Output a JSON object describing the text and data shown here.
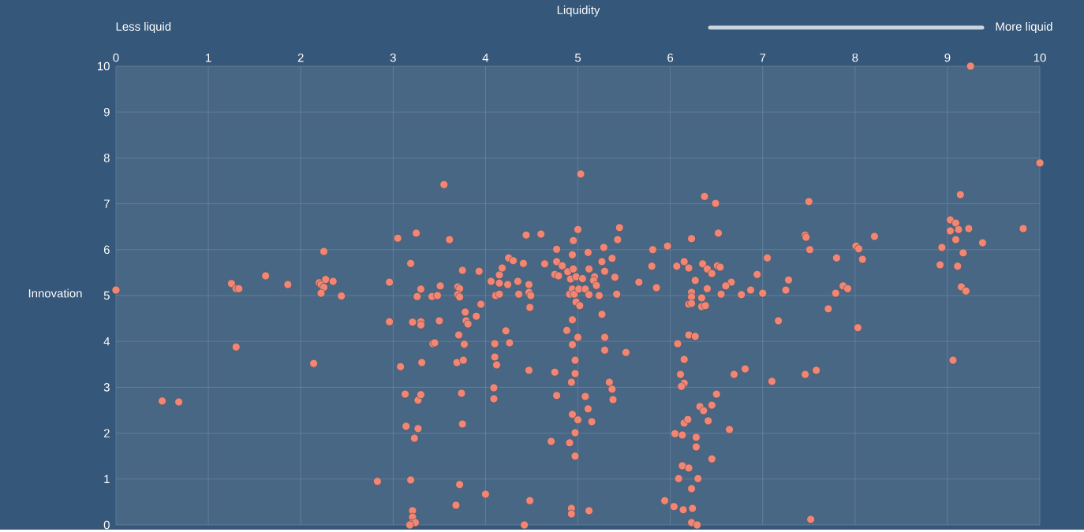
{
  "chart_data": {
    "type": "scatter",
    "xlabel": "Liquidity",
    "ylabel": "Innovation",
    "annotations": [
      "Less liquid",
      "More liquid"
    ],
    "x": [
      0,
      0.5,
      0.68,
      1.25,
      1.3,
      1.33,
      1.3,
      1.62,
      1.86,
      2.14,
      2.2,
      2.22,
      2.25,
      2.27,
      2.22,
      2.25,
      2.35,
      2.44,
      2.83,
      3.05,
      3.25,
      3.55,
      3.61,
      3.19,
      3.75,
      3.93,
      2.96,
      3.3,
      3.51,
      3.7,
      3.72,
      4.06,
      4.15,
      4.18,
      4.15,
      4.24,
      4.25,
      4.3,
      4.35,
      4.41,
      4.44,
      4.47,
      4.6,
      4.64,
      4.77,
      4.77,
      4.83,
      4.75,
      4.79,
      4.89,
      4.92,
      4.94,
      4.95,
      5.0,
      4.95,
      4.98,
      5.05,
      5.11,
      5.12,
      5.03,
      5.28,
      5.26,
      5.37,
      5.43,
      5.45,
      5.18,
      5.17,
      5.2,
      5.29,
      5.4,
      5.66,
      5.8,
      5.81,
      5.97,
      5.85,
      6.07,
      6.15,
      6.2,
      6.23,
      6.37,
      6.49,
      6.52,
      6.27,
      6.35,
      6.4,
      6.45,
      6.51,
      6.54,
      6.4,
      3.26,
      3.42,
      3.48,
      3.7,
      3.72,
      4.11,
      4.15,
      4.36,
      4.47,
      4.49,
      4.48,
      3.95,
      3.78,
      3.79,
      3.81,
      3.9,
      2.96,
      3.21,
      3.3,
      3.3,
      3.5,
      3.71,
      3.43,
      3.45,
      3.77,
      4.1,
      4.26,
      4.22,
      3.08,
      3.31,
      3.69,
      3.76,
      4.1,
      4.12,
      4.47,
      3.13,
      3.27,
      3.3,
      3.74,
      4.09,
      4.09,
      4.75,
      4.77,
      3.14,
      3.27,
      3.23,
      3.75,
      4.71,
      4.91,
      4.97,
      4.97,
      4.94,
      5.0,
      5.15,
      5.11,
      5.08,
      4.93,
      4.97,
      4.97,
      5.0,
      4.94,
      4.88,
      4.94,
      4.98,
      5.02,
      4.91,
      4.94,
      4.96,
      5.01,
      5.08,
      5.12,
      5.23,
      5.42,
      5.26,
      5.29,
      5.29,
      5.52,
      5.34,
      5.37,
      5.38,
      6.23,
      6.23,
      6.2,
      6.23,
      6.34,
      6.34,
      6.38,
      6.55,
      6.08,
      6.2,
      6.27,
      6.15,
      6.11,
      6.15,
      6.12,
      6.05,
      6.13,
      6.28,
      6.28,
      6.15,
      6.19,
      6.32,
      6.36,
      6.45,
      6.41,
      6.5,
      6.45,
      6.13,
      6.2,
      6.09,
      6.3,
      6.23,
      5.94,
      6.04,
      6.14,
      6.24,
      6.23,
      6.29,
      5.12,
      4.93,
      4.93,
      4.48,
      4.42,
      4.0,
      3.68,
      3.72,
      3.19,
      3.21,
      3.21,
      3.2,
      3.24,
      3.18,
      9.25,
      10,
      7.5,
      7.46,
      7.47,
      7.51,
      7.05,
      7.8,
      8.01,
      8.04,
      8.21,
      8.08,
      6.94,
      7.28,
      6.66,
      6.6,
      6.87,
      7.25,
      9.14,
      9.03,
      9.09,
      9.03,
      9.12,
      9.23,
      9.82,
      9.09,
      9.38,
      8.94,
      9.17,
      8.92,
      9.11,
      9.15,
      9.2,
      7.87,
      7.92,
      7.79,
      6.77,
      7.0,
      7.17,
      7.71,
      8.03,
      9.06,
      6.69,
      6.81,
      7.1,
      7.46,
      7.58,
      6.64,
      7.52
    ],
    "values": [
      5.12,
      2.7,
      2.68,
      5.26,
      5.15,
      5.15,
      3.88,
      5.43,
      5.24,
      3.52,
      5.28,
      5.24,
      5.18,
      5.35,
      5.05,
      5.96,
      5.31,
      4.99,
      0.95,
      6.25,
      6.36,
      7.42,
      6.22,
      5.7,
      5.55,
      5.53,
      5.29,
      5.14,
      5.21,
      5.19,
      5.15,
      5.31,
      5.45,
      5.6,
      5.27,
      5.24,
      5.82,
      5.76,
      5.31,
      5.7,
      6.32,
      5.24,
      6.34,
      5.69,
      6.01,
      5.74,
      5.65,
      5.46,
      5.43,
      5.52,
      5.36,
      5.89,
      6.2,
      6.44,
      5.58,
      5.41,
      5.37,
      5.94,
      5.58,
      7.65,
      6.05,
      5.74,
      5.81,
      6.22,
      6.48,
      5.41,
      5.33,
      5.22,
      5.53,
      5.4,
      5.29,
      5.64,
      6.0,
      6.08,
      5.17,
      5.64,
      5.74,
      5.6,
      6.24,
      7.16,
      7.01,
      6.36,
      5.33,
      5.69,
      5.58,
      5.48,
      5.65,
      5.62,
      5.15,
      4.98,
      4.98,
      5.0,
      5.02,
      4.97,
      5.0,
      5.03,
      5.03,
      5.07,
      5.0,
      4.74,
      4.81,
      4.64,
      4.45,
      4.38,
      4.55,
      4.43,
      4.42,
      4.43,
      4.36,
      4.45,
      4.14,
      3.95,
      3.97,
      3.94,
      3.95,
      3.97,
      4.23,
      3.45,
      3.54,
      3.54,
      3.59,
      3.66,
      3.49,
      3.37,
      2.85,
      2.72,
      2.84,
      2.87,
      2.99,
      2.75,
      3.33,
      2.82,
      2.15,
      2.1,
      1.89,
      2.2,
      1.82,
      1.79,
      2.01,
      1.5,
      2.41,
      2.29,
      2.25,
      2.53,
      2.8,
      3.11,
      3.3,
      3.59,
      4.09,
      3.93,
      4.24,
      4.47,
      4.86,
      4.78,
      5.03,
      5.14,
      5.03,
      5.14,
      5.14,
      5.02,
      5.0,
      5.03,
      4.59,
      4.09,
      3.81,
      3.76,
      3.11,
      2.96,
      2.73,
      5.07,
      4.97,
      4.81,
      4.83,
      4.95,
      4.76,
      4.78,
      5.03,
      3.95,
      4.14,
      4.11,
      3.61,
      3.28,
      3.09,
      3.02,
      1.99,
      1.96,
      1.91,
      1.7,
      2.22,
      2.3,
      2.58,
      2.49,
      2.61,
      2.27,
      2.85,
      1.44,
      1.29,
      1.24,
      1.01,
      1.01,
      0.79,
      0.53,
      0.4,
      0.33,
      0.36,
      0.05,
      0,
      0.31,
      0.36,
      0.24,
      0.53,
      0,
      0.67,
      0.43,
      0.88,
      0.98,
      0.31,
      0.17,
      0.03,
      0.05,
      0,
      10,
      7.89,
      7.05,
      6.32,
      6.27,
      6.0,
      5.82,
      5.82,
      6.08,
      6.02,
      6.29,
      5.79,
      5.46,
      5.34,
      5.29,
      5.21,
      5.12,
      5.12,
      7.2,
      6.65,
      6.58,
      6.41,
      6.44,
      6.46,
      6.46,
      6.22,
      6.15,
      6.05,
      5.93,
      5.67,
      5.64,
      5.19,
      5.1,
      5.21,
      5.15,
      5.05,
      5.02,
      5.05,
      4.45,
      4.71,
      4.3,
      3.59,
      3.28,
      3.4,
      3.13,
      3.28,
      3.37,
      2.08,
      0.12
    ],
    "color": "#f28672",
    "marker": "circle",
    "grid": true,
    "xlim": [
      0,
      10
    ],
    "ylim": [
      0,
      10
    ],
    "xticks": [
      0,
      1,
      2,
      3,
      4,
      5,
      6,
      7,
      8,
      9,
      10
    ],
    "yticks": [
      0,
      1,
      2,
      3,
      4,
      5,
      6,
      7,
      8,
      9,
      10
    ]
  }
}
